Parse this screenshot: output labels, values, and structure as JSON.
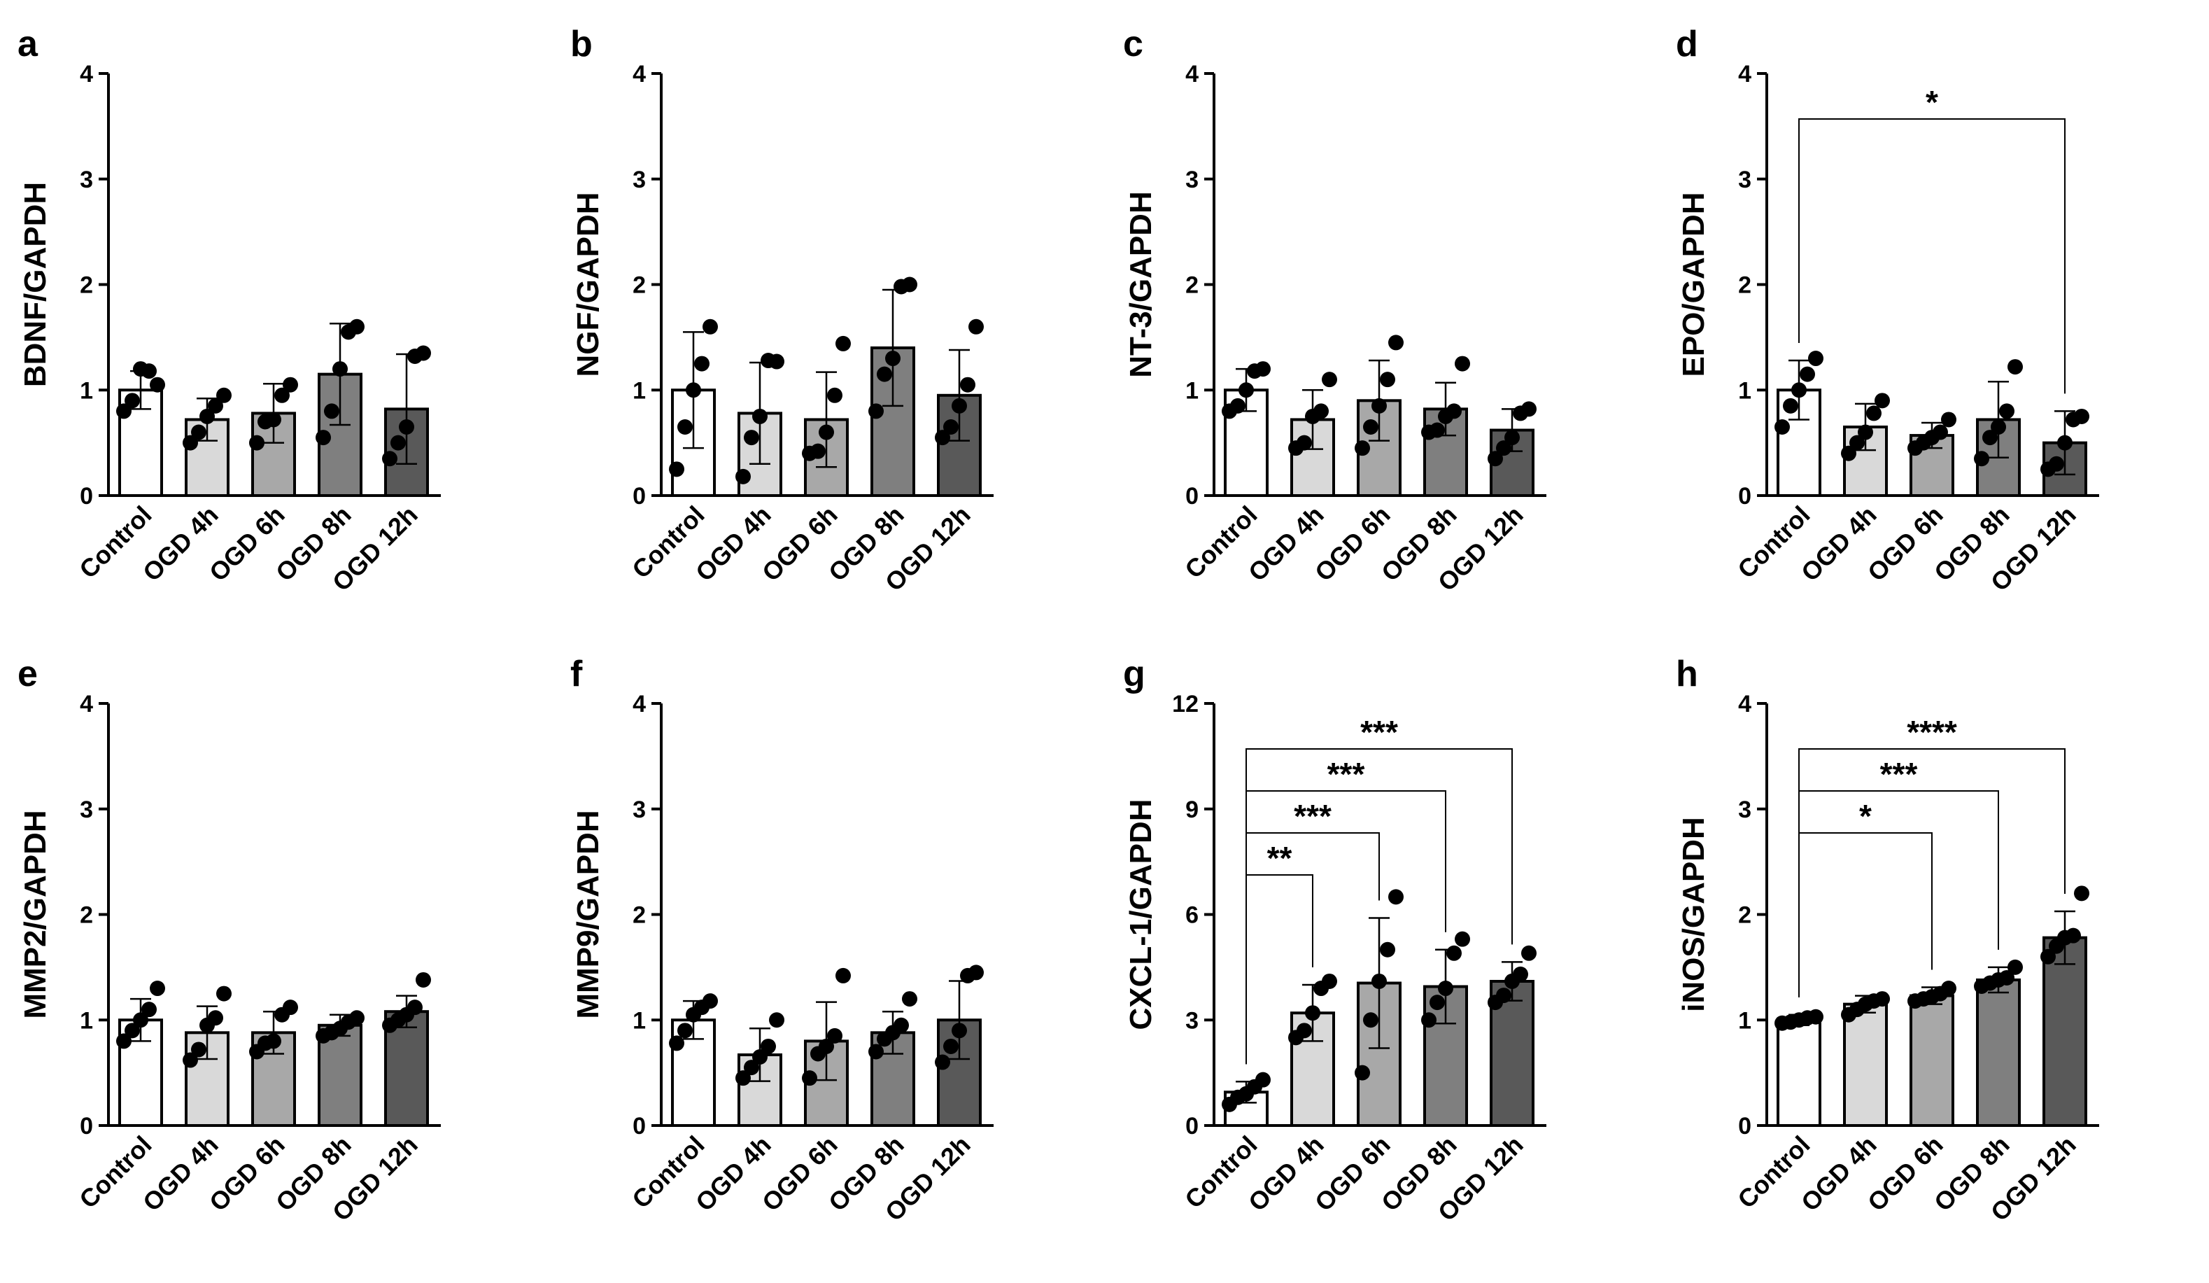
{
  "figure": {
    "categories": [
      "Control",
      "OGD 4h",
      "OGD 6h",
      "OGD 8h",
      "OGD 12h"
    ],
    "bar_colors": [
      "#ffffff",
      "#d9d9d9",
      "#a8a8a8",
      "#7f7f7f",
      "#595959"
    ]
  },
  "chart_data": [
    {
      "panel": "a",
      "type": "bar",
      "ylabel": "BDNF/GAPDH",
      "ylim": [
        0,
        4
      ],
      "yticks": [
        0,
        1,
        2,
        3,
        4
      ],
      "values": [
        1.0,
        0.72,
        0.78,
        1.15,
        0.82
      ],
      "errors": [
        0.18,
        0.2,
        0.28,
        0.48,
        0.52
      ],
      "points": [
        [
          0.8,
          0.9,
          1.2,
          1.18,
          1.05
        ],
        [
          0.5,
          0.6,
          0.75,
          0.85,
          0.95
        ],
        [
          0.5,
          0.7,
          0.72,
          0.95,
          1.05
        ],
        [
          0.55,
          0.8,
          1.2,
          1.55,
          1.6
        ],
        [
          0.35,
          0.5,
          0.65,
          1.32,
          1.35
        ]
      ],
      "significance": []
    },
    {
      "panel": "b",
      "type": "bar",
      "ylabel": "NGF/GAPDH",
      "ylim": [
        0,
        4
      ],
      "yticks": [
        0,
        1,
        2,
        3,
        4
      ],
      "values": [
        1.0,
        0.78,
        0.72,
        1.4,
        0.95
      ],
      "errors": [
        0.55,
        0.48,
        0.45,
        0.55,
        0.43
      ],
      "points": [
        [
          0.25,
          0.65,
          1.0,
          1.25,
          1.6
        ],
        [
          0.18,
          0.55,
          0.75,
          1.28,
          1.27
        ],
        [
          0.4,
          0.42,
          0.6,
          0.95,
          1.44
        ],
        [
          0.8,
          1.15,
          1.3,
          1.98,
          2.0
        ],
        [
          0.55,
          0.65,
          0.85,
          1.05,
          1.6
        ]
      ],
      "significance": []
    },
    {
      "panel": "c",
      "type": "bar",
      "ylabel": "NT-3/GAPDH",
      "ylim": [
        0,
        4
      ],
      "yticks": [
        0,
        1,
        2,
        3,
        4
      ],
      "values": [
        1.0,
        0.72,
        0.9,
        0.82,
        0.62
      ],
      "errors": [
        0.2,
        0.28,
        0.38,
        0.25,
        0.2
      ],
      "points": [
        [
          0.8,
          0.85,
          1.0,
          1.18,
          1.2
        ],
        [
          0.45,
          0.5,
          0.75,
          0.8,
          1.1
        ],
        [
          0.45,
          0.65,
          0.85,
          1.1,
          1.45
        ],
        [
          0.6,
          0.62,
          0.75,
          0.8,
          1.25
        ],
        [
          0.35,
          0.45,
          0.55,
          0.78,
          0.82
        ]
      ],
      "significance": []
    },
    {
      "panel": "d",
      "type": "bar",
      "ylabel": "EPO/GAPDH",
      "ylim": [
        0,
        4
      ],
      "yticks": [
        0,
        1,
        2,
        3,
        4
      ],
      "values": [
        1.0,
        0.65,
        0.57,
        0.72,
        0.5
      ],
      "errors": [
        0.28,
        0.22,
        0.12,
        0.36,
        0.3
      ],
      "points": [
        [
          0.65,
          0.85,
          1.0,
          1.15,
          1.3
        ],
        [
          0.4,
          0.5,
          0.6,
          0.78,
          0.9
        ],
        [
          0.45,
          0.5,
          0.55,
          0.6,
          0.72
        ],
        [
          0.35,
          0.55,
          0.65,
          0.8,
          1.22
        ],
        [
          0.25,
          0.3,
          0.5,
          0.72,
          0.75
        ]
      ],
      "significance": [
        {
          "from": 0,
          "to": 4,
          "label": "*"
        }
      ]
    },
    {
      "panel": "e",
      "type": "bar",
      "ylabel": "MMP2/GAPDH",
      "ylim": [
        0,
        4
      ],
      "yticks": [
        0,
        1,
        2,
        3,
        4
      ],
      "values": [
        1.0,
        0.88,
        0.88,
        0.95,
        1.08
      ],
      "errors": [
        0.2,
        0.25,
        0.2,
        0.1,
        0.15
      ],
      "points": [
        [
          0.8,
          0.9,
          1.0,
          1.1,
          1.3
        ],
        [
          0.62,
          0.72,
          0.95,
          1.02,
          1.25
        ],
        [
          0.7,
          0.78,
          0.8,
          1.05,
          1.12
        ],
        [
          0.85,
          0.88,
          0.92,
          0.98,
          1.02
        ],
        [
          0.95,
          1.0,
          1.05,
          1.12,
          1.38
        ]
      ],
      "significance": []
    },
    {
      "panel": "f",
      "type": "bar",
      "ylabel": "MMP9/GAPDH",
      "ylim": [
        0,
        4
      ],
      "yticks": [
        0,
        1,
        2,
        3,
        4
      ],
      "values": [
        1.0,
        0.67,
        0.8,
        0.88,
        1.0
      ],
      "errors": [
        0.18,
        0.25,
        0.37,
        0.2,
        0.37
      ],
      "points": [
        [
          0.78,
          0.9,
          1.05,
          1.12,
          1.18
        ],
        [
          0.45,
          0.55,
          0.65,
          0.75,
          1.0
        ],
        [
          0.45,
          0.68,
          0.75,
          0.85,
          1.42
        ],
        [
          0.7,
          0.82,
          0.88,
          0.95,
          1.2
        ],
        [
          0.6,
          0.75,
          0.9,
          1.42,
          1.45
        ]
      ],
      "significance": []
    },
    {
      "panel": "g",
      "type": "bar",
      "ylabel": "CXCL-1/GAPDH",
      "ylim": [
        0,
        12
      ],
      "yticks": [
        0,
        3,
        6,
        9,
        12
      ],
      "values": [
        0.95,
        3.2,
        4.05,
        3.95,
        4.1
      ],
      "errors": [
        0.3,
        0.8,
        1.85,
        1.05,
        0.55
      ],
      "points": [
        [
          0.6,
          0.8,
          0.9,
          1.1,
          1.3
        ],
        [
          2.5,
          2.7,
          3.2,
          3.9,
          4.1
        ],
        [
          1.5,
          3.0,
          4.1,
          5.0,
          6.5
        ],
        [
          3.0,
          3.5,
          3.9,
          4.9,
          5.3
        ],
        [
          3.5,
          3.7,
          4.1,
          4.3,
          4.9
        ]
      ],
      "significance": [
        {
          "from": 0,
          "to": 1,
          "label": "**"
        },
        {
          "from": 0,
          "to": 2,
          "label": "***"
        },
        {
          "from": 0,
          "to": 3,
          "label": "***"
        },
        {
          "from": 0,
          "to": 4,
          "label": "***"
        }
      ]
    },
    {
      "panel": "h",
      "type": "bar",
      "ylabel": "iNOS/GAPDH",
      "ylim": [
        0,
        4
      ],
      "yticks": [
        0,
        1,
        2,
        3,
        4
      ],
      "values": [
        1.0,
        1.15,
        1.23,
        1.38,
        1.78
      ],
      "errors": [
        0.05,
        0.08,
        0.08,
        0.12,
        0.25
      ],
      "points": [
        [
          0.97,
          0.98,
          1.0,
          1.02,
          1.03
        ],
        [
          1.05,
          1.1,
          1.15,
          1.18,
          1.2
        ],
        [
          1.18,
          1.2,
          1.22,
          1.25,
          1.3
        ],
        [
          1.32,
          1.35,
          1.38,
          1.4,
          1.5
        ],
        [
          1.6,
          1.7,
          1.78,
          1.8,
          2.2
        ]
      ],
      "significance": [
        {
          "from": 0,
          "to": 2,
          "label": "*"
        },
        {
          "from": 0,
          "to": 3,
          "label": "***"
        },
        {
          "from": 0,
          "to": 4,
          "label": "****"
        }
      ]
    }
  ]
}
